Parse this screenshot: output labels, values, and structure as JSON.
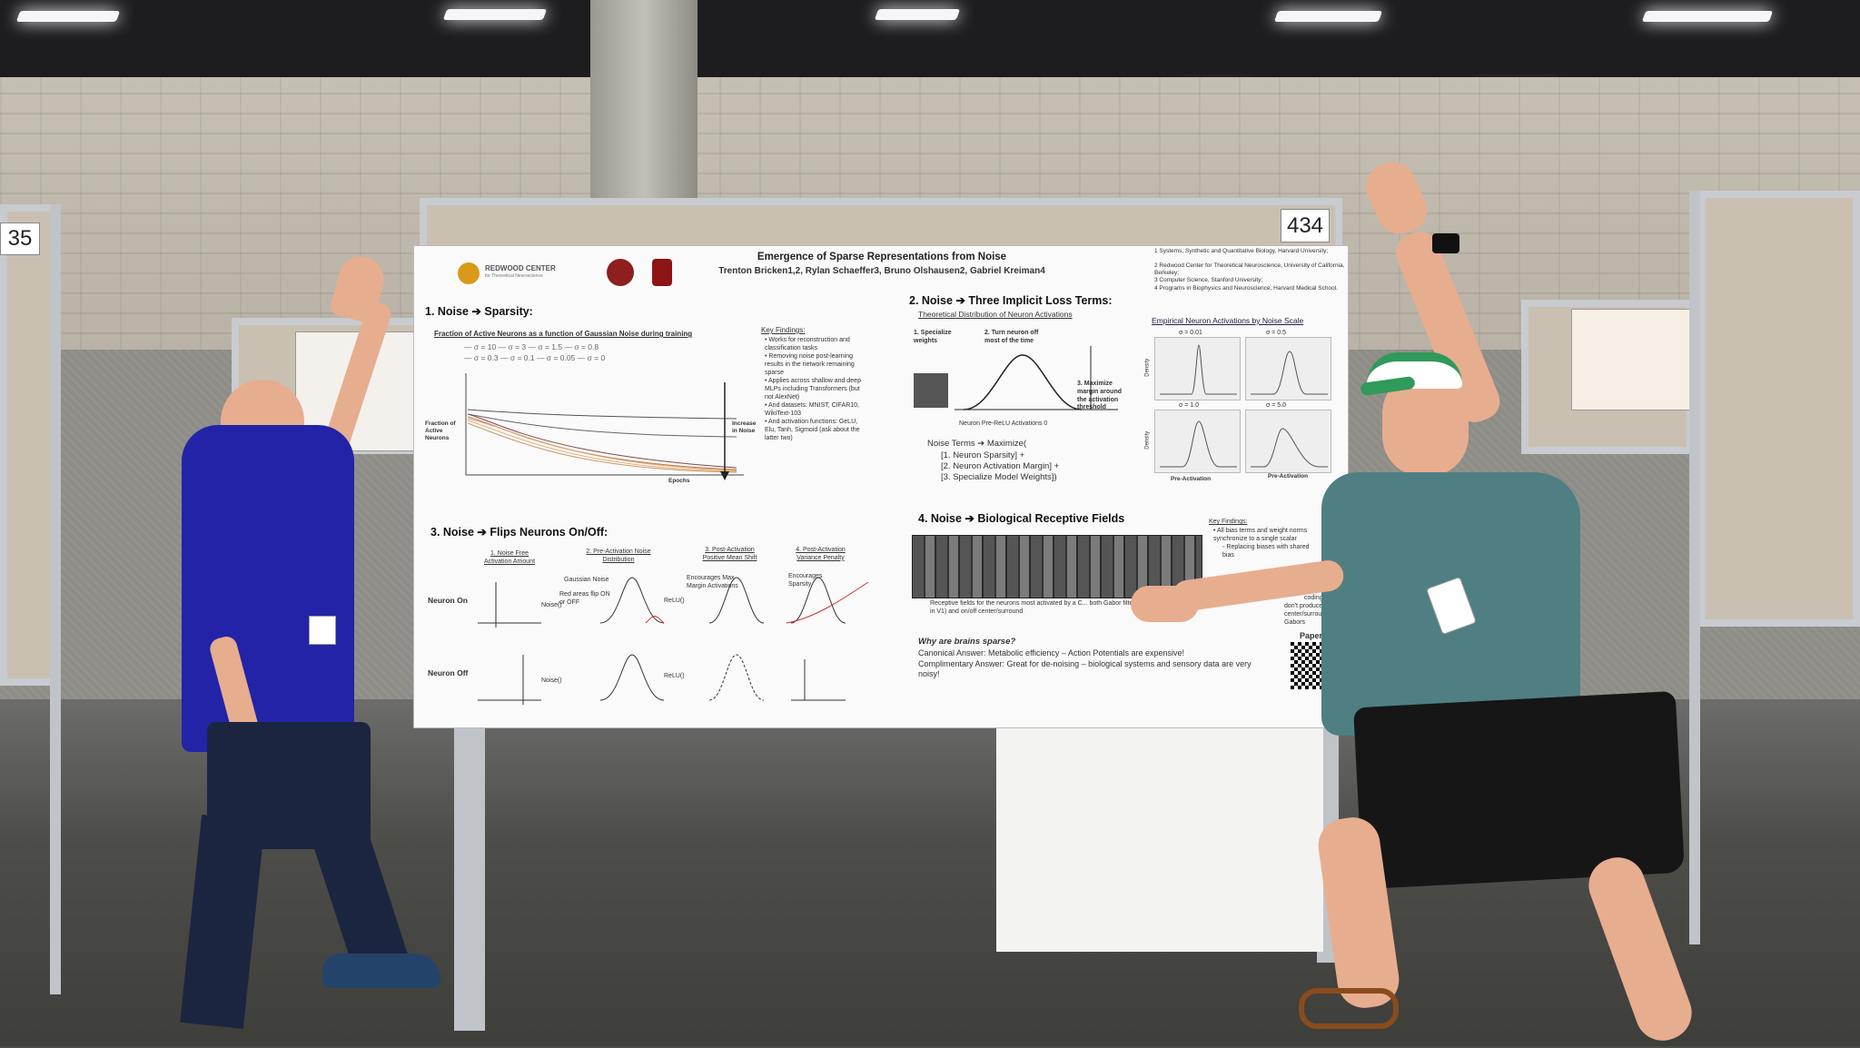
{
  "booth": {
    "number": "434",
    "neighbor_number": "35"
  },
  "poster": {
    "logos": {
      "redwood_line1": "REDWOOD CENTER",
      "redwood_line2": "for Theoretical Neuroscience"
    },
    "title": "Emergence of Sparse Representations from Noise",
    "authors": "Trenton Bricken1,2, Rylan Schaeffer3, Bruno Olshausen2, Gabriel Kreiman4",
    "affiliations": [
      "1 Systems, Synthetic and Quantitative Biology, Harvard University;",
      "2 Redwood Center for Theoretical Neuroscience, University of California, Berkeley;",
      "3 Computer Science, Stanford University;",
      "4 Programs in Biophysics and Neuroscience, Harvard Medical School."
    ],
    "section1": {
      "title": "1. Noise ➔ Sparsity:",
      "plot_title": "Fraction of Active Neurons as a function of Gaussian Noise during training",
      "legend_row1": "— σ = 10    — σ = 3    — σ = 1.5    — σ = 0.8",
      "legend_row2": "— σ = 0.3    — σ = 0.1    — σ = 0.05    — σ = 0",
      "ylabel": "Fraction of Active Neurons",
      "xlabel": "Epochs",
      "arrow_label": "Increase in Noise",
      "key_findings_title": "Key Findings:",
      "key_findings": [
        "• Works for reconstruction and classification tasks",
        "• Removing noise post-learning results in the network remaining sparse",
        "• Applies across shallow and deep MLPs including Transformers (but not AlexNet)",
        "• And datasets: MNIST, CIFAR10, WikiText-103",
        "• And activation functions: GeLU, Elu, Tanh, Sigmoid (ask about the latter two)"
      ]
    },
    "section2": {
      "title": "2. Noise ➔ Three Implicit Loss Terms:",
      "subtitle": "Theoretical Distribution of Neuron Activations",
      "label_specialize": "1. Specialize weights",
      "label_turn_off": "2. Turn neuron off most of the time",
      "label_margin": "3. Maximize margin around the activation threshold",
      "xlabel": "Neuron Pre-ReLU Activations  0",
      "noise_terms": "Noise Terms ➔ Maximize(",
      "terms": [
        "[1. Neuron Sparsity] +",
        "[2. Neuron Activation Margin] +",
        "[3. Specialize Model Weights])"
      ],
      "empirical_title": "Empirical Neuron Activations by Noise Scale",
      "panels": [
        "σ = 0.01",
        "σ = 0.5",
        "σ = 1.0",
        "σ = 5.0"
      ],
      "density_label": "Density",
      "pre_activation": "Pre-Activation"
    },
    "section3": {
      "title": "3. Noise ➔ Flips Neurons On/Off:",
      "steps": [
        "1. Noise Free Activation Amount",
        "2. Pre-Activation Noise Distribution",
        "3. Post-Activation Positive Mean Shift",
        "4. Post-Activation Variance Penalty"
      ],
      "row_on": "Neuron On",
      "row_off": "Neuron Off",
      "noise_op": "Noise()",
      "relu_op": "ReLU()",
      "gaussian_noise": "Gaussian Noise",
      "red_areas": "Red areas flip ON or OFF",
      "encourages_margin": "Encourages Max Margin Activations",
      "encourages_sparsity": "Encourages Sparsity"
    },
    "section4": {
      "title": "4. Noise ➔ Biological Receptive Fields",
      "key_findings_title": "Key Findings:",
      "key_findings": [
        "• All bias terms and weight norms synchronize to a single scalar",
        "◦ Replacing biases with shared bias",
        "coding (L1",
        "don't produce on/off",
        "center/surround, only Gabors"
      ],
      "caption": "Receptive fields for the neurons most activated by a C... both Gabor filters (present in V1) and on/off center/surround",
      "why": "Why are brains sparse?",
      "canonical": "Canonical Answer: Metabolic efficiency – Action Potentials are expensive!",
      "complimentary": "Complimentary Answer: Great for de-noising – biological systems and sensory data are very noisy!",
      "paper": "Paper"
    }
  },
  "colors": {
    "shirt_left": "#2323a8",
    "shirt_right": "#4f7f83",
    "hat_green": "#2f9a5a"
  }
}
